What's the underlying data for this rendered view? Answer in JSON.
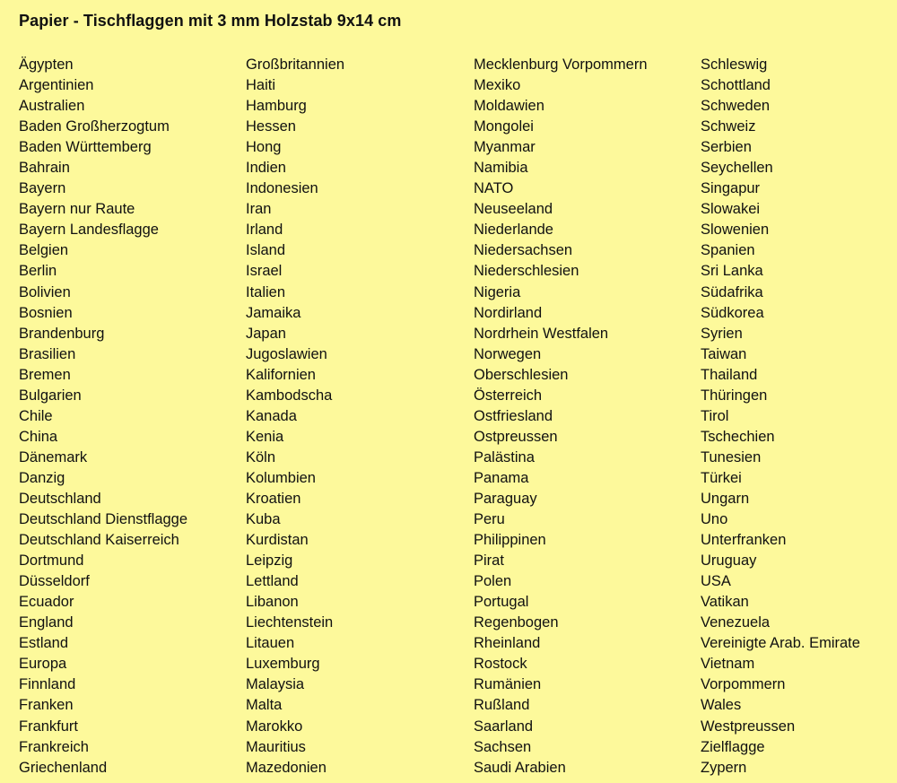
{
  "title": "Papier - Tischflaggen mit 3 mm Holzstab 9x14 cm",
  "background_color": "#fdf99b",
  "columns": [
    [
      "Ägypten",
      "Argentinien",
      "Australien",
      "Baden Großherzogtum",
      "Baden Württemberg",
      "Bahrain",
      "Bayern",
      "Bayern nur Raute",
      "Bayern Landesflagge",
      "Belgien",
      "Berlin",
      "Bolivien",
      "Bosnien",
      "Brandenburg",
      "Brasilien",
      "Bremen",
      "Bulgarien",
      "Chile",
      "China",
      "Dänemark",
      "Danzig",
      "Deutschland",
      "Deutschland Dienstflagge",
      "Deutschland Kaiserreich",
      "Dortmund",
      "Düsseldorf",
      "Ecuador",
      "England",
      "Estland",
      "Europa",
      "Finnland",
      "Franken",
      "Frankfurt",
      "Frankreich",
      "Griechenland"
    ],
    [
      "Großbritannien",
      "Haiti",
      "Hamburg",
      "Hessen",
      "Hong",
      "Indien",
      "Indonesien",
      "Iran",
      "Irland",
      "Island",
      "Israel",
      "Italien",
      "Jamaika",
      "Japan",
      "Jugoslawien",
      "Kalifornien",
      "Kambodscha",
      "Kanada",
      "Kenia",
      "Köln",
      "Kolumbien",
      "Kroatien",
      "Kuba",
      "Kurdistan",
      "Leipzig",
      "Lettland",
      "Libanon",
      "Liechtenstein",
      "Litauen",
      "Luxemburg",
      "Malaysia",
      "Malta",
      "Marokko",
      "Mauritius",
      "Mazedonien"
    ],
    [
      "Mecklenburg Vorpommern",
      "Mexiko",
      "Moldawien",
      "Mongolei",
      "Myanmar",
      "Namibia",
      "NATO",
      "Neuseeland",
      "Niederlande",
      "Niedersachsen",
      "Niederschlesien",
      "Nigeria",
      "Nordirland",
      "Nordrhein Westfalen",
      "Norwegen",
      "Oberschlesien",
      "Österreich",
      "Ostfriesland",
      "Ostpreussen",
      "Palästina",
      "Panama",
      "Paraguay",
      "Peru",
      "Philippinen",
      "Pirat",
      "Polen",
      "Portugal",
      "Regenbogen",
      "Rheinland",
      "Rostock",
      "Rumänien",
      "Rußland",
      "Saarland",
      "Sachsen",
      "Saudi Arabien"
    ],
    [
      "Schleswig",
      "Schottland",
      "Schweden",
      "Schweiz",
      "Serbien",
      "Seychellen",
      "Singapur",
      "Slowakei",
      "Slowenien",
      "Spanien",
      "Sri Lanka",
      "Südafrika",
      "Südkorea",
      "Syrien",
      "Taiwan",
      "Thailand",
      "Thüringen",
      "Tirol",
      "Tschechien",
      "Tunesien",
      "Türkei",
      "Ungarn",
      "Uno",
      "Unterfranken",
      "Uruguay",
      "USA",
      "Vatikan",
      "Venezuela",
      "Vereinigte Arab. Emirate",
      "Vietnam",
      "Vorpommern",
      "Wales",
      "Westpreussen",
      "Zielflagge",
      "Zypern"
    ]
  ]
}
